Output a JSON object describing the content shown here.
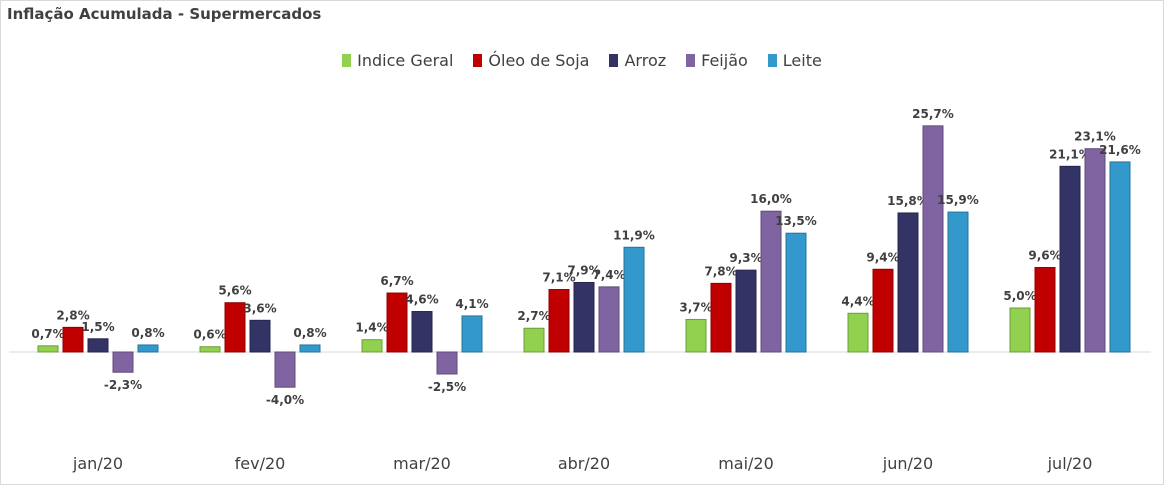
{
  "chart_data": {
    "type": "bar",
    "title": "Inflação Acumulada - Supermercados",
    "categories": [
      "jan/20",
      "fev/20",
      "mar/20",
      "abr/20",
      "mai/20",
      "jun/20",
      "jul/20"
    ],
    "series": [
      {
        "name": "Indice Geral",
        "color": "#92d050",
        "values": [
          0.7,
          0.6,
          1.4,
          2.7,
          3.7,
          4.4,
          5.0
        ],
        "labels": [
          "0,7%",
          "0,6%",
          "1,4%",
          "2,7%",
          "3,7%",
          "4,4%",
          "5,0%"
        ]
      },
      {
        "name": "Óleo de Soja",
        "color": "#c00000",
        "values": [
          2.8,
          5.6,
          6.7,
          7.1,
          7.8,
          9.4,
          9.6
        ],
        "labels": [
          "2,8%",
          "5,6%",
          "6,7%",
          "7,1%",
          "7,8%",
          "9,4%",
          "9,6%"
        ]
      },
      {
        "name": "Arroz",
        "color": "#333366",
        "values": [
          1.5,
          3.6,
          4.6,
          7.9,
          9.3,
          15.8,
          21.1
        ],
        "labels": [
          "1,5%",
          "3,6%",
          "4,6%",
          "7,9%",
          "9,3%",
          "15,8%",
          "21,1%"
        ]
      },
      {
        "name": "Feijão",
        "color": "#8064a2",
        "values": [
          -2.3,
          -4.0,
          -2.5,
          7.4,
          16.0,
          25.7,
          23.1
        ],
        "labels": [
          "-2,3%",
          "-4,0%",
          "-2,5%",
          "7,4%",
          "16,0%",
          "25,7%",
          "23,1%"
        ]
      },
      {
        "name": "Leite",
        "color": "#3399cc",
        "values": [
          0.8,
          0.8,
          4.1,
          11.9,
          13.5,
          15.9,
          21.6
        ],
        "labels": [
          "0,8%",
          "0,8%",
          "4,1%",
          "11,9%",
          "13,5%",
          "15,9%",
          "21,6%"
        ]
      }
    ],
    "ylim": [
      -8,
      28
    ],
    "grid": false,
    "legend_position": "top"
  }
}
